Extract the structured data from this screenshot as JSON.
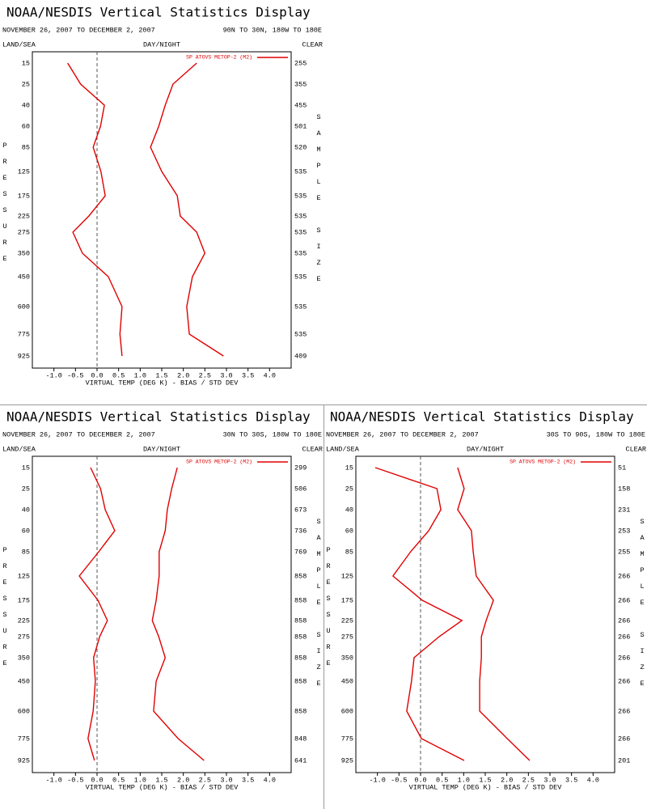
{
  "chart_data": [
    {
      "type": "line",
      "title": "NOAA/NESDIS Vertical Statistics Display",
      "subtitle": "NOVEMBER 26, 2007 TO DECEMBER 2, 2007",
      "region": "90N TO 30N, 180W TO 180E",
      "land_sea": "LAND/SEA",
      "day_night": "DAY/NIGHT",
      "clear": "CLEAR",
      "y_label": "PRESSURE",
      "y2_label": "SAMPLE SIZE",
      "x_label": "VIRTUAL TEMP (DEG K) - BIAS / STD DEV",
      "levels": [
        15,
        25,
        40,
        60,
        85,
        125,
        175,
        225,
        275,
        350,
        450,
        600,
        775,
        925
      ],
      "sample_size": [
        255,
        355,
        455,
        501,
        520,
        535,
        535,
        535,
        535,
        535,
        535,
        535,
        535,
        409
      ],
      "series": [
        {
          "name": "SP ATOVS METOP-2 (M2)",
          "color": "#e00000",
          "bias": [
            -0.68,
            -0.38,
            0.17,
            0.08,
            -0.09,
            0.09,
            0.19,
            -0.19,
            -0.56,
            -0.34,
            0.26,
            0.58,
            0.53,
            0.58
          ],
          "std_dev": [
            2.31,
            1.76,
            1.58,
            1.43,
            1.24,
            1.5,
            1.86,
            1.93,
            2.31,
            2.5,
            2.21,
            2.08,
            2.14,
            2.93
          ]
        }
      ],
      "xlim": [
        -1.5,
        4.5
      ],
      "xticks": [
        {
          "value": -1,
          "label": "-1.0"
        },
        -0.5,
        {
          "value": 0,
          "label": "0.0"
        },
        0.5,
        {
          "value": 1,
          "label": "1.0"
        },
        1.5,
        {
          "value": 2,
          "label": "2.0"
        },
        2.5,
        {
          "value": 3,
          "label": "3.0"
        },
        3.5,
        {
          "value": 4,
          "label": "4.0"
        }
      ]
    },
    {
      "type": "line",
      "title": "NOAA/NESDIS Vertical Statistics Display",
      "subtitle": "NOVEMBER 26, 2007 TO DECEMBER 2, 2007",
      "region": "30N TO 30S, 180W TO 180E",
      "land_sea": "LAND/SEA",
      "day_night": "DAY/NIGHT",
      "clear": "CLEAR",
      "y_label": "PRESSURE",
      "y2_label": "SAMPLE SIZE",
      "x_label": "VIRTUAL TEMP (DEG K) - BIAS / STD DEV",
      "levels": [
        15,
        25,
        40,
        60,
        85,
        125,
        175,
        225,
        275,
        350,
        450,
        600,
        775,
        925
      ],
      "sample_size": [
        299,
        506,
        673,
        736,
        769,
        858,
        858,
        858,
        858,
        858,
        858,
        858,
        848,
        641
      ],
      "series": [
        {
          "name": "SP ATOVS METOP-2 (M2)",
          "color": "#e00000",
          "bias": [
            -0.15,
            0.08,
            0.19,
            0.41,
            0.04,
            -0.41,
            0.02,
            0.24,
            0.06,
            -0.08,
            -0.04,
            -0.09,
            -0.21,
            -0.06
          ],
          "std_dev": [
            1.86,
            1.73,
            1.63,
            1.58,
            1.44,
            1.44,
            1.37,
            1.28,
            1.43,
            1.58,
            1.37,
            1.31,
            1.88,
            2.48
          ]
        }
      ],
      "xlim": [
        -1.5,
        4.5
      ],
      "xticks": [
        {
          "value": -1,
          "label": "-1.0"
        },
        -0.5,
        {
          "value": 0,
          "label": "0.0"
        },
        0.5,
        {
          "value": 1,
          "label": "1.0"
        },
        1.5,
        {
          "value": 2,
          "label": "2.0"
        },
        2.5,
        {
          "value": 3,
          "label": "3.0"
        },
        3.5,
        {
          "value": 4,
          "label": "4.0"
        }
      ]
    },
    {
      "type": "line",
      "title": "NOAA/NESDIS Vertical Statistics Display",
      "subtitle": "NOVEMBER 26, 2007 TO DECEMBER 2, 2007",
      "region": "30S TO 90S, 180W TO 180E",
      "land_sea": "LAND/SEA",
      "day_night": "DAY/NIGHT",
      "clear": "CLEAR",
      "y_label": "PRESSURE",
      "y2_label": "SAMPLE SIZE",
      "x_label": "VIRTUAL TEMP (DEG K) - BIAS / STD DEV",
      "levels": [
        15,
        25,
        40,
        60,
        85,
        125,
        175,
        225,
        275,
        350,
        450,
        600,
        775,
        925
      ],
      "sample_size": [
        51,
        158,
        231,
        253,
        255,
        266,
        266,
        266,
        266,
        266,
        266,
        266,
        266,
        201
      ],
      "series": [
        {
          "name": "SP ATOVS METOP-2 (M2)",
          "color": "#e00000",
          "bias": [
            -1.05,
            0.38,
            0.47,
            0.19,
            -0.23,
            -0.64,
            0.04,
            0.96,
            0.43,
            -0.15,
            -0.21,
            -0.32,
            0.02,
            1.01
          ],
          "std_dev": [
            0.86,
            1.01,
            0.86,
            1.18,
            1.22,
            1.29,
            1.69,
            1.52,
            1.41,
            1.41,
            1.37,
            1.37,
            2.01,
            2.53
          ]
        }
      ],
      "xlim": [
        -1.5,
        4.5
      ],
      "xticks": [
        {
          "value": -1,
          "label": "-1.0"
        },
        -0.5,
        {
          "value": 0,
          "label": "0.0"
        },
        0.5,
        {
          "value": 1,
          "label": "1.0"
        },
        1.5,
        {
          "value": 2,
          "label": "2.0"
        },
        2.5,
        {
          "value": 3,
          "label": "3.0"
        },
        3.5,
        {
          "value": 4,
          "label": "4.0"
        }
      ]
    }
  ]
}
